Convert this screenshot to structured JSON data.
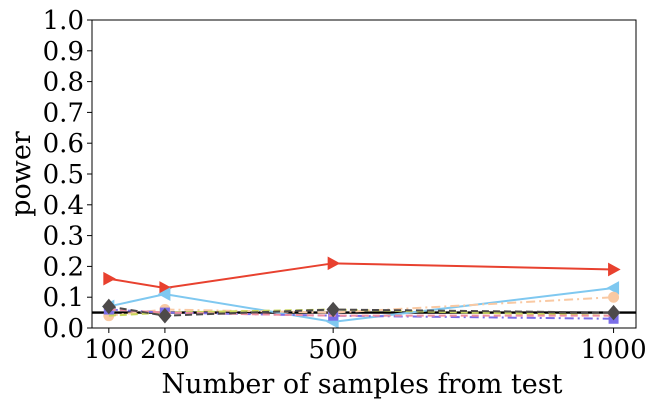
{
  "chart_data": {
    "type": "line",
    "xlabel": "Number of samples from test",
    "ylabel": "power",
    "xlim": [
      70,
      1040
    ],
    "ylim": [
      0,
      1.0
    ],
    "x": [
      100,
      200,
      500,
      1000
    ],
    "x_tick_labels": [
      "100",
      "200",
      "500",
      "1000"
    ],
    "y_ticks": [
      0.0,
      0.1,
      0.2,
      0.3,
      0.4,
      0.5,
      0.6,
      0.7,
      0.8,
      0.9,
      1.0
    ],
    "y_tick_labels": [
      "0.0",
      "0.1",
      "0.2",
      "0.3",
      "0.4",
      "0.5",
      "0.6",
      "0.7",
      "0.8",
      "0.9",
      "1.0"
    ],
    "reference_line": {
      "y": 0.05,
      "color": "#000000"
    },
    "grid": false,
    "legend": "none",
    "series": [
      {
        "values": [
          0.16,
          0.13,
          0.21,
          0.19
        ],
        "color": "#e8412f",
        "marker": "triangle-right",
        "dash": "solid"
      },
      {
        "values": [
          0.07,
          0.11,
          0.02,
          0.13
        ],
        "color": "#7fc8f0",
        "marker": "triangle-left",
        "dash": "solid"
      },
      {
        "values": [
          0.04,
          0.06,
          0.05,
          0.1
        ],
        "color": "#f9c9a3",
        "marker": "circle",
        "dash": "dashdot"
      },
      {
        "values": [
          0.04,
          0.05,
          0.06,
          0.04
        ],
        "color": "#c8d65a",
        "marker": "none",
        "dash": "dashed"
      },
      {
        "values": [
          0.06,
          0.05,
          0.04,
          0.03
        ],
        "color": "#7b6ee8",
        "marker": "square",
        "dash": "dashdot"
      },
      {
        "values": [
          0.06,
          0.05,
          0.04,
          0.04
        ],
        "color": "#f08fa0",
        "marker": "none",
        "dash": "dashed"
      },
      {
        "values": [
          0.07,
          0.04,
          0.06,
          0.05
        ],
        "color": "#4d4a4a",
        "marker": "diamond",
        "dash": "dashed"
      }
    ]
  }
}
